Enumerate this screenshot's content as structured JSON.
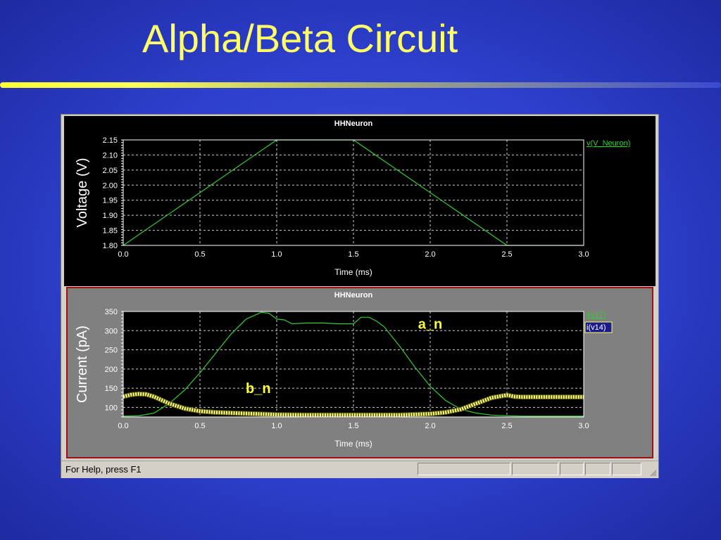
{
  "slide": {
    "title": "Alpha/Beta Circuit"
  },
  "app": {
    "status_text": "For Help, press F1"
  },
  "colors": {
    "background": "#2f42d0",
    "title": "#ffff66",
    "trace_green": "#33cc33",
    "trace_yellow": "#ffff99",
    "panel_black": "#000000",
    "panel_gray": "#808080",
    "selected_border": "#a01010"
  },
  "chart_data": [
    {
      "type": "line",
      "title": "HHNeuron",
      "xlabel": "Time (ms)",
      "ylabel": "Voltage (V)",
      "xlim": [
        0.0,
        3.0
      ],
      "ylim": [
        1.8,
        2.15
      ],
      "xticks": [
        "0.0",
        "0.5",
        "1.0",
        "1.5",
        "2.0",
        "2.5",
        "3.0"
      ],
      "yticks": [
        "1.80",
        "1.85",
        "1.90",
        "1.95",
        "2.00",
        "2.05",
        "2.10",
        "2.15"
      ],
      "grid": true,
      "legend_position": "top-right",
      "series": [
        {
          "name": "v(V_Neuron)",
          "color": "#33cc33",
          "x": [
            0.0,
            1.0,
            1.5,
            2.5,
            3.0
          ],
          "y": [
            1.8,
            2.15,
            2.15,
            1.8,
            1.8
          ]
        }
      ]
    },
    {
      "type": "line",
      "title": "HHNeuron",
      "xlabel": "Time (ms)",
      "ylabel": "Current (pA)",
      "xlim": [
        0.0,
        3.0
      ],
      "ylim": [
        75,
        350
      ],
      "xticks": [
        "0.0",
        "0.5",
        "1.0",
        "1.5",
        "2.0",
        "2.5",
        "3.0"
      ],
      "yticks": [
        "100",
        "150",
        "200",
        "250",
        "300",
        "350"
      ],
      "grid": true,
      "legend_position": "top-right",
      "annotations": [
        {
          "text": "a_n",
          "x": 2.0,
          "y": 305
        },
        {
          "text": "b_n",
          "x": 0.88,
          "y": 137
        }
      ],
      "series": [
        {
          "name": "i(v17)",
          "color": "#33cc33",
          "x": [
            0.0,
            0.1,
            0.2,
            0.3,
            0.4,
            0.5,
            0.6,
            0.7,
            0.8,
            0.9,
            0.95,
            1.0,
            1.05,
            1.1,
            1.2,
            1.3,
            1.4,
            1.5,
            1.55,
            1.6,
            1.65,
            1.7,
            1.8,
            1.9,
            2.0,
            2.1,
            2.2,
            2.3,
            2.4,
            2.5,
            2.6,
            3.0
          ],
          "y": [
            77,
            78,
            85,
            110,
            145,
            190,
            240,
            290,
            330,
            348,
            345,
            330,
            328,
            318,
            320,
            320,
            318,
            318,
            335,
            335,
            325,
            310,
            260,
            205,
            155,
            118,
            95,
            85,
            80,
            78,
            77,
            77
          ]
        },
        {
          "name": "i(v14)",
          "color": "#ffff99",
          "x": [
            0.0,
            0.05,
            0.1,
            0.15,
            0.2,
            0.3,
            0.4,
            0.5,
            0.6,
            0.8,
            1.0,
            1.2,
            1.4,
            1.6,
            1.8,
            2.0,
            2.1,
            2.2,
            2.3,
            2.4,
            2.5,
            2.55,
            2.6,
            3.0
          ],
          "y": [
            128,
            133,
            135,
            134,
            128,
            110,
            97,
            90,
            87,
            84,
            81,
            80,
            80,
            80,
            80,
            83,
            87,
            95,
            110,
            125,
            132,
            128,
            127,
            127
          ]
        }
      ]
    }
  ]
}
